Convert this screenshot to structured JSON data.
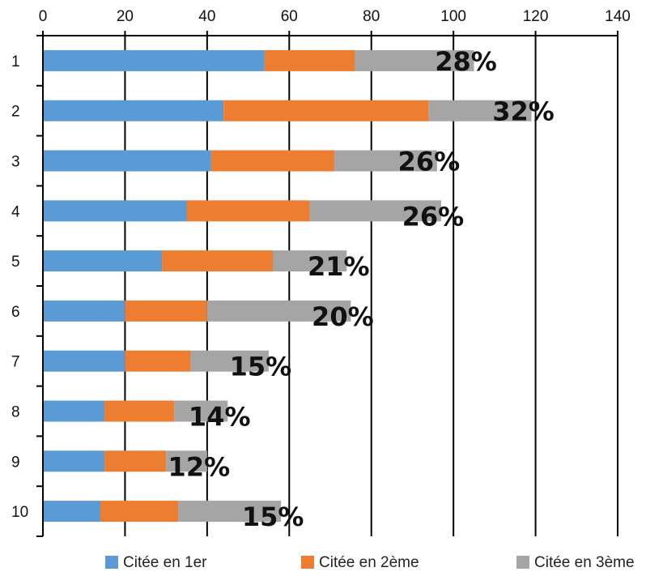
{
  "chart_data": {
    "type": "bar",
    "orientation": "horizontal",
    "stacked": true,
    "xlim": [
      0,
      140
    ],
    "x_ticks": [
      "0",
      "20",
      "40",
      "60",
      "80",
      "100",
      "120",
      "140"
    ],
    "x_ticks_position": "top",
    "grid": true,
    "legend_position": "bottom",
    "categories": [
      "1",
      "2",
      "3",
      "4",
      "5",
      "6",
      "7",
      "8",
      "9",
      "10"
    ],
    "series": [
      {
        "name": "Citée en 1er",
        "color": "#5b9bd5",
        "values": [
          54,
          44,
          41,
          35,
          29,
          20,
          20,
          15,
          15,
          14
        ]
      },
      {
        "name": "Citée en 2ème",
        "color": "#ed7d31",
        "values": [
          22,
          50,
          30,
          30,
          27,
          20,
          16,
          17,
          15,
          19
        ]
      },
      {
        "name": "Citée en 3ème",
        "color": "#a5a5a5",
        "values": [
          29,
          25,
          25,
          32,
          18,
          35,
          19,
          13,
          10,
          25
        ]
      }
    ],
    "data_labels": [
      "28%",
      "32%",
      "26%",
      "26%",
      "21%",
      "20%",
      "15%",
      "14%",
      "12%",
      "15%"
    ]
  }
}
